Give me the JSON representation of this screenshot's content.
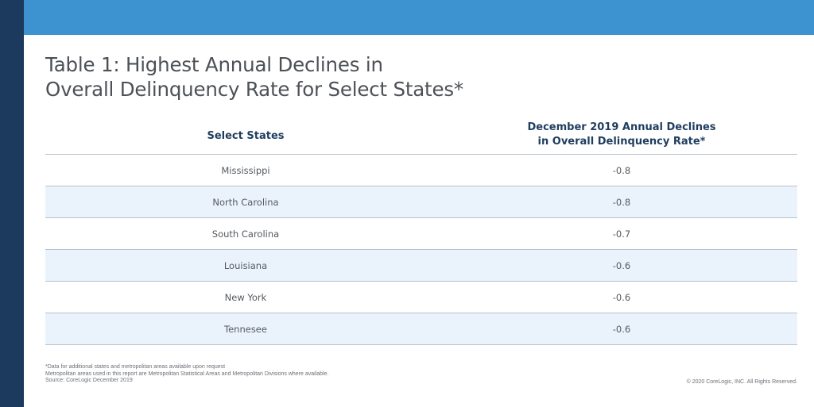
{
  "title": {
    "line1": "Table 1: Highest Annual Declines in",
    "line2": "Overall Delinquency Rate for Select States*"
  },
  "table": {
    "headers": {
      "col1": "Select States",
      "col2_line1": "December 2019 Annual Declines",
      "col2_line2": "in Overall Delinquency Rate*"
    },
    "rows": [
      {
        "state": "Mississippi",
        "value": "-0.8"
      },
      {
        "state": "North Carolina",
        "value": "-0.8"
      },
      {
        "state": "South Carolina",
        "value": "-0.7"
      },
      {
        "state": "Louisiana",
        "value": "-0.6"
      },
      {
        "state": "New York",
        "value": "-0.6"
      },
      {
        "state": "Tennesee",
        "value": "-0.6"
      }
    ]
  },
  "footnotes": {
    "line1": "*Data for additional states and metropolitan areas available upon request",
    "line2": "Metropolitan areas used in this report are Metropolitan Statistical Areas and Metropolitan Divisions where available.",
    "line3": "Source: CoreLogic December 2019"
  },
  "copyright": "© 2020 CoreLogic, INC. All Rights Reserved.",
  "colors": {
    "top_bar": "#3d93cf",
    "left_bar": "#1b3a5e",
    "header_text": "#1f3d5f",
    "alt_row": "#eaf3fb"
  }
}
